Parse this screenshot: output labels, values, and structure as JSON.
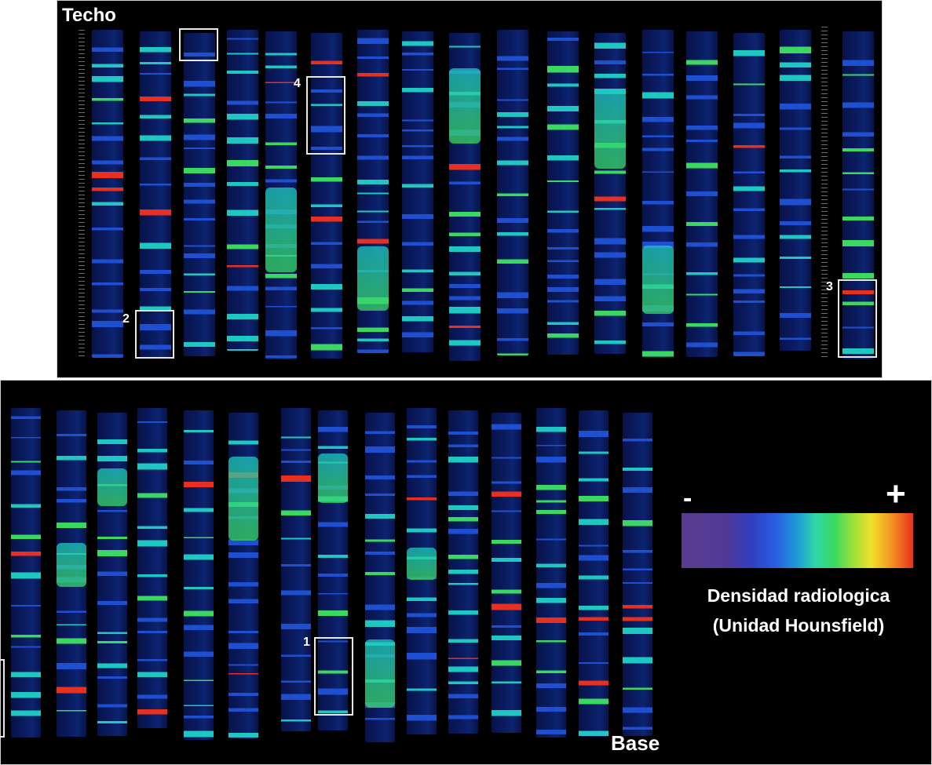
{
  "labels": {
    "top": "Techo",
    "bottom": "Base"
  },
  "legend": {
    "minus": "-",
    "plus": "+",
    "title_line1": "Densidad radiologica",
    "title_line2": "(Unidad Hounsfield)"
  },
  "boxes": [
    {
      "number": "1"
    },
    {
      "number": "2"
    },
    {
      "number": "3"
    },
    {
      "number": "4"
    }
  ],
  "colors": {
    "background": "#000000",
    "core_base": "#0a1a5e",
    "low_density": "#1e4fd0",
    "mid_density": "#1ec8c0",
    "high_density": "#3ad860",
    "peak_density": "#e83020"
  }
}
